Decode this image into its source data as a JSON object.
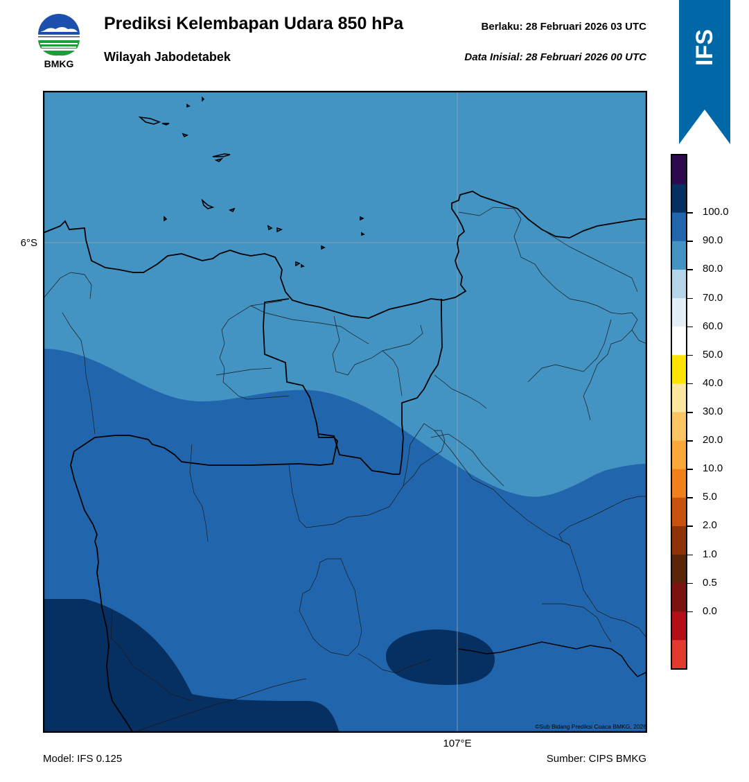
{
  "header": {
    "title": "Prediksi Kelembapan Udara 850 hPa",
    "subtitle": "Wilayah Jabodetabek",
    "valid_label": "Berlaku:  28 Februari 2026 03 UTC",
    "init_label": "Data Inisial:  28 Februari 2026 00 UTC"
  },
  "logo": {
    "text": "BMKG",
    "icon": "bmkg-logo"
  },
  "ribbon": {
    "text": "IFS",
    "color": "#0168a8"
  },
  "map": {
    "lat_label": "6°S",
    "lon_label": "107°E",
    "credit": "©Sub Bidang Prediksi Cuaca BMKG, 2026"
  },
  "footer": {
    "model": "Model: IFS 0.125",
    "source": "Sumber: CIPS BMKG"
  },
  "colorbar": {
    "labels": [
      "0.0",
      "0.5",
      "1.0",
      "2.0",
      "5.0",
      "10.0",
      "20.0",
      "30.0",
      "40.0",
      "50.0",
      "60.0",
      "70.0",
      "80.0",
      "90.0",
      "100.0"
    ],
    "colors": [
      "#e23a2f",
      "#b30f17",
      "#7b1410",
      "#5b2409",
      "#8d3307",
      "#c9520c",
      "#f17f1c",
      "#fba83a",
      "#fdc463",
      "#fde69f",
      "#fde300",
      "#ffffff",
      "#e3eef7",
      "#b5d6e8",
      "#4393c3",
      "#2166ac",
      "#073062",
      "#2d0a4e"
    ]
  },
  "fields": {
    "humidity_70_80": "#4393c3",
    "humidity_80_90": "#2166ac",
    "humidity_90_100": "#073062"
  }
}
